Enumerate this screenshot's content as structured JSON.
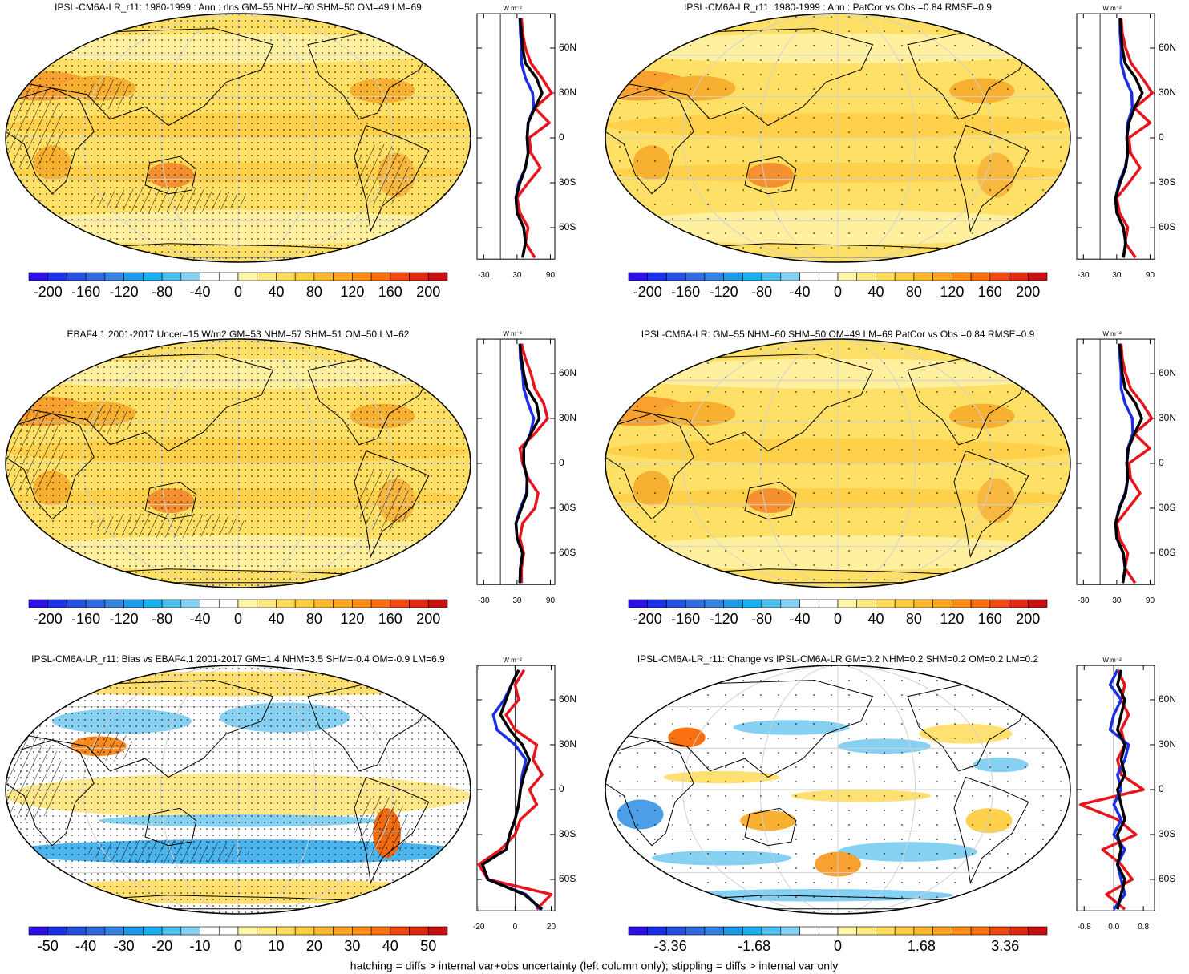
{
  "panels": [
    {
      "title": "IPSL-CM6A-LR_r11: 1980-1999 : Ann : rlns GM=55 NHM=60 SHM=50 OM=49 LM=69",
      "colorbar": {
        "lim": [
          -220,
          220
        ],
        "ticks": [
          -200,
          -160,
          -120,
          -80,
          -40,
          0,
          40,
          80,
          120,
          160,
          200
        ],
        "colors": [
          "#2c10e8",
          "#1a30e6",
          "#2450e0",
          "#2f6ade",
          "#3483e2",
          "#1e9ae8",
          "#18b0f0",
          "#4cbff0",
          "#86d0f2",
          "#ffffff",
          "#ffffff",
          "#fff6a8",
          "#ffe980",
          "#ffdb5c",
          "#ffcb40",
          "#ffb830",
          "#ffa320",
          "#ff8c14",
          "#f87010",
          "#f04a10",
          "#e02a10",
          "#c81010"
        ]
      },
      "profile": {
        "unit": "W m⁻²",
        "xlim": [
          -42,
          98
        ],
        "xticks": [
          -30,
          30,
          90
        ],
        "ylim": [
          -81,
          83
        ],
        "yticks": [
          {
            "value": 60,
            "label": "60N"
          },
          {
            "value": 30,
            "label": "30N"
          },
          {
            "value": 0,
            "label": "0"
          },
          {
            "value": -30,
            "label": "30S"
          },
          {
            "value": -60,
            "label": "60S"
          }
        ],
        "lat": [
          -80,
          -70,
          -60,
          -50,
          -40,
          -30,
          -20,
          -10,
          0,
          10,
          20,
          30,
          40,
          50,
          60,
          70,
          80
        ],
        "series": [
          {
            "color": "#e8141c",
            "values": [
              62,
              45,
              50,
              35,
              30,
              50,
              72,
              55,
              52,
              88,
              62,
              92,
              75,
              55,
              45,
              40,
              38
            ]
          },
          {
            "color": "#1a2ee8",
            "values": [
              40,
              45,
              42,
              30,
              28,
              33,
              45,
              50,
              48,
              50,
              60,
              58,
              45,
              38,
              38,
              36,
              35
            ]
          },
          {
            "color": "#000000",
            "values": [
              40,
              45,
              42,
              30,
              28,
              35,
              45,
              50,
              48,
              50,
              62,
              75,
              65,
              45,
              40,
              38,
              35
            ]
          }
        ]
      }
    },
    {
      "title": "IPSL-CM6A-LR_r11: 1980-1999 : Ann : PatCor vs Obs =0.84 RMSE=0.9",
      "colorbar": {
        "lim": [
          -220,
          220
        ],
        "ticks": [
          -200,
          -160,
          -120,
          -80,
          -40,
          0,
          40,
          80,
          120,
          160,
          200
        ],
        "colors": [
          "#2c10e8",
          "#1a30e6",
          "#2450e0",
          "#2f6ade",
          "#3483e2",
          "#1e9ae8",
          "#18b0f0",
          "#4cbff0",
          "#86d0f2",
          "#ffffff",
          "#ffffff",
          "#fff6a8",
          "#ffe980",
          "#ffdb5c",
          "#ffcb40",
          "#ffb830",
          "#ffa320",
          "#ff8c14",
          "#f87010",
          "#f04a10",
          "#e02a10",
          "#c81010"
        ]
      },
      "profile": {
        "unit": "W m⁻²",
        "xlim": [
          -42,
          98
        ],
        "xticks": [
          -30,
          30,
          90
        ],
        "ylim": [
          -81,
          83
        ],
        "yticks": [
          {
            "value": 60,
            "label": "60N"
          },
          {
            "value": 30,
            "label": "30N"
          },
          {
            "value": 0,
            "label": "0"
          },
          {
            "value": -30,
            "label": "30S"
          },
          {
            "value": -60,
            "label": "60S"
          }
        ],
        "lat": [
          -80,
          -70,
          -60,
          -50,
          -40,
          -30,
          -20,
          -10,
          0,
          10,
          20,
          30,
          40,
          50,
          60,
          70,
          80
        ],
        "series": [
          {
            "color": "#e8141c",
            "values": [
              64,
              45,
              50,
              35,
              30,
              52,
              72,
              55,
              52,
              90,
              62,
              94,
              76,
              56,
              46,
              40,
              38
            ]
          },
          {
            "color": "#1a2ee8",
            "values": [
              42,
              46,
              42,
              30,
              28,
              34,
              45,
              50,
              48,
              50,
              58,
              57,
              45,
              38,
              38,
              36,
              36
            ]
          },
          {
            "color": "#000000",
            "values": [
              42,
              46,
              42,
              30,
              28,
              36,
              46,
              50,
              48,
              52,
              62,
              76,
              64,
              45,
              40,
              38,
              36
            ]
          }
        ]
      }
    },
    {
      "title": "EBAF4.1 2001-2017 Uncer=15 W/m2 GM=53 NHM=57 SHM=51 OM=50 LM=62",
      "colorbar": {
        "lim": [
          -220,
          220
        ],
        "ticks": [
          -200,
          -160,
          -120,
          -80,
          -40,
          0,
          40,
          80,
          120,
          160,
          200
        ],
        "colors": [
          "#2c10e8",
          "#1a30e6",
          "#2450e0",
          "#2f6ade",
          "#3483e2",
          "#1e9ae8",
          "#18b0f0",
          "#4cbff0",
          "#86d0f2",
          "#ffffff",
          "#ffffff",
          "#fff6a8",
          "#ffe980",
          "#ffdb5c",
          "#ffcb40",
          "#ffb830",
          "#ffa320",
          "#ff8c14",
          "#f87010",
          "#f04a10",
          "#e02a10",
          "#c81010"
        ]
      },
      "profile": {
        "unit": "W m⁻²",
        "xlim": [
          -42,
          98
        ],
        "xticks": [
          -30,
          30,
          90
        ],
        "ylim": [
          -81,
          83
        ],
        "yticks": [
          {
            "value": 60,
            "label": "60N"
          },
          {
            "value": 30,
            "label": "30N"
          },
          {
            "value": 0,
            "label": "0"
          },
          {
            "value": -30,
            "label": "30S"
          },
          {
            "value": -60,
            "label": "60S"
          }
        ],
        "lat": [
          -80,
          -70,
          -60,
          -50,
          -40,
          -30,
          -20,
          -10,
          0,
          10,
          20,
          30,
          40,
          50,
          60,
          70,
          80
        ],
        "series": [
          {
            "color": "#e8141c",
            "values": [
              38,
              38,
              42,
              35,
              40,
              62,
              68,
              50,
              40,
              35,
              62,
              85,
              78,
              62,
              55,
              45,
              38
            ]
          },
          {
            "color": "#1a2ee8",
            "values": [
              35,
              36,
              40,
              30,
              28,
              36,
              47,
              48,
              42,
              42,
              54,
              60,
              50,
              42,
              40,
              36,
              35
            ]
          },
          {
            "color": "#000000",
            "values": [
              35,
              36,
              40,
              30,
              28,
              38,
              48,
              48,
              42,
              42,
              55,
              70,
              65,
              48,
              42,
              38,
              35
            ]
          }
        ]
      }
    },
    {
      "title": "IPSL-CM6A-LR: GM=55 NHM=60 SHM=50 OM=49 LM=69 PatCor vs Obs =0.84 RMSE=0.9",
      "colorbar": {
        "lim": [
          -220,
          220
        ],
        "ticks": [
          -200,
          -160,
          -120,
          -80,
          -40,
          0,
          40,
          80,
          120,
          160,
          200
        ],
        "colors": [
          "#2c10e8",
          "#1a30e6",
          "#2450e0",
          "#2f6ade",
          "#3483e2",
          "#1e9ae8",
          "#18b0f0",
          "#4cbff0",
          "#86d0f2",
          "#ffffff",
          "#ffffff",
          "#fff6a8",
          "#ffe980",
          "#ffdb5c",
          "#ffcb40",
          "#ffb830",
          "#ffa320",
          "#ff8c14",
          "#f87010",
          "#f04a10",
          "#e02a10",
          "#c81010"
        ]
      },
      "profile": {
        "unit": "W m⁻²",
        "xlim": [
          -42,
          98
        ],
        "xticks": [
          -30,
          30,
          90
        ],
        "ylim": [
          -81,
          83
        ],
        "yticks": [
          {
            "value": 60,
            "label": "60N"
          },
          {
            "value": 30,
            "label": "30N"
          },
          {
            "value": 0,
            "label": "0"
          },
          {
            "value": -30,
            "label": "30S"
          },
          {
            "value": -60,
            "label": "60S"
          }
        ],
        "lat": [
          -80,
          -70,
          -60,
          -50,
          -40,
          -30,
          -20,
          -10,
          0,
          10,
          20,
          30,
          40,
          50,
          60,
          70,
          80
        ],
        "series": [
          {
            "color": "#e8141c",
            "values": [
              63,
              45,
              50,
              35,
              30,
              51,
              72,
              55,
              52,
              89,
              62,
              93,
              76,
              55,
              46,
              40,
              38
            ]
          },
          {
            "color": "#1a2ee8",
            "values": [
              41,
              45,
              42,
              30,
              28,
              34,
              45,
              50,
              48,
              50,
              59,
              58,
              45,
              38,
              38,
              36,
              35
            ]
          },
          {
            "color": "#000000",
            "values": [
              41,
              45,
              42,
              30,
              28,
              35,
              46,
              50,
              48,
              51,
              62,
              75,
              64,
              45,
              40,
              38,
              35
            ]
          }
        ]
      }
    },
    {
      "title": "IPSL-CM6A-LR_r11: Bias vs EBAF4.1 2001-2017 GM=1.4 NHM=3.5 SHM=-0.4 OM=-0.9 LM=6.9",
      "colorbar": {
        "lim": [
          -55,
          55
        ],
        "ticks": [
          -50,
          -40,
          -30,
          -20,
          -10,
          0,
          10,
          20,
          30,
          40,
          50
        ],
        "colors": [
          "#2c10e8",
          "#1a30e6",
          "#2450e0",
          "#2f6ade",
          "#3483e2",
          "#1e9ae8",
          "#18b0f0",
          "#4cbff0",
          "#86d0f2",
          "#ffffff",
          "#ffffff",
          "#fff6a8",
          "#ffe980",
          "#ffdb5c",
          "#ffcb40",
          "#ffb830",
          "#ffa320",
          "#ff8c14",
          "#f87010",
          "#f04a10",
          "#e02a10",
          "#c81010"
        ]
      },
      "profile": {
        "unit": "W m⁻²",
        "xlim": [
          -21,
          22
        ],
        "xticks": [
          -20,
          0,
          20
        ],
        "ylim": [
          -81,
          83
        ],
        "yticks": [
          {
            "value": 60,
            "label": "60N"
          },
          {
            "value": 30,
            "label": "30N"
          },
          {
            "value": 0,
            "label": "0"
          },
          {
            "value": -30,
            "label": "30S"
          },
          {
            "value": -60,
            "label": "60S"
          }
        ],
        "lat": [
          -80,
          -70,
          -60,
          -50,
          -40,
          -30,
          -20,
          -10,
          0,
          10,
          20,
          30,
          40,
          50,
          60,
          70,
          80
        ],
        "series": [
          {
            "color": "#e8141c",
            "values": [
              12,
              20,
              -15,
              -20,
              -8,
              0,
              3,
              12,
              8,
              15,
              10,
              12,
              0,
              -5,
              2,
              0,
              5
            ]
          },
          {
            "color": "#1a2ee8",
            "values": [
              14,
              6,
              -15,
              -18,
              -5,
              -3,
              0,
              2,
              3,
              4,
              6,
              0,
              -10,
              -12,
              -6,
              -2,
              2
            ]
          },
          {
            "color": "#000000",
            "values": [
              15,
              5,
              -15,
              -18,
              -5,
              -3,
              0,
              2,
              3,
              5,
              8,
              4,
              -3,
              -8,
              -5,
              -2,
              2
            ]
          }
        ]
      }
    },
    {
      "title": "IPSL-CM6A-LR_r11: Change vs IPSL-CM6A-LR GM=0.2 NHM=0.2 SHM=0.2 OM=0.2 LM=0.2",
      "colorbar": {
        "lim": [
          -4.2,
          4.2
        ],
        "ticks": [
          -3.36,
          -1.68,
          0,
          1.68,
          3.36
        ],
        "colors": [
          "#2c10e8",
          "#1a30e6",
          "#2450e0",
          "#2f6ade",
          "#3483e2",
          "#1e9ae8",
          "#18b0f0",
          "#4cbff0",
          "#86d0f2",
          "#ffffff",
          "#ffffff",
          "#fff6a8",
          "#ffe980",
          "#ffdb5c",
          "#ffcb40",
          "#ffb830",
          "#ffa320",
          "#ff8c14",
          "#f87010",
          "#f04a10",
          "#e02a10",
          "#c81010"
        ]
      },
      "profile": {
        "unit": "W m⁻²",
        "xlim": [
          -1.0,
          1.1
        ],
        "xticks": [
          -0.8,
          {
            "value": 0,
            "label": "0.0"
          },
          0.8
        ],
        "ylim": [
          -81,
          83
        ],
        "yticks": [
          {
            "value": 60,
            "label": "60N"
          },
          {
            "value": 30,
            "label": "30N"
          },
          {
            "value": 0,
            "label": "0"
          },
          {
            "value": -30,
            "label": "30S"
          },
          {
            "value": -60,
            "label": "60S"
          }
        ],
        "lat": [
          -80,
          -70,
          -60,
          -50,
          -40,
          -30,
          -20,
          -10,
          0,
          10,
          20,
          30,
          40,
          50,
          60,
          70,
          80
        ],
        "series": [
          {
            "color": "#e8141c",
            "values": [
              0.3,
              -0.2,
              0.5,
              0.2,
              -0.3,
              0.6,
              0.1,
              -0.9,
              0.8,
              0.2,
              0.1,
              0.3,
              0.2,
              0.4,
              0.2,
              0.3,
              0.1
            ]
          },
          {
            "color": "#1a2ee8",
            "values": [
              0.0,
              0.3,
              0.2,
              0.1,
              0.3,
              0.0,
              0.2,
              0.0,
              0.2,
              0.1,
              0.3,
              0.4,
              -0.1,
              0.0,
              0.2,
              -0.1,
              0.1
            ]
          },
          {
            "color": "#000000",
            "values": [
              0.1,
              0.2,
              0.3,
              0.1,
              0.2,
              0.1,
              0.3,
              0.2,
              0.1,
              0.3,
              0.2,
              0.3,
              0.1,
              0.2,
              0.3,
              0.1,
              0.2
            ]
          }
        ]
      }
    }
  ],
  "footer": "hatching = diffs > internal var+obs uncertainty (left column only); stippling = diffs > internal var only"
}
